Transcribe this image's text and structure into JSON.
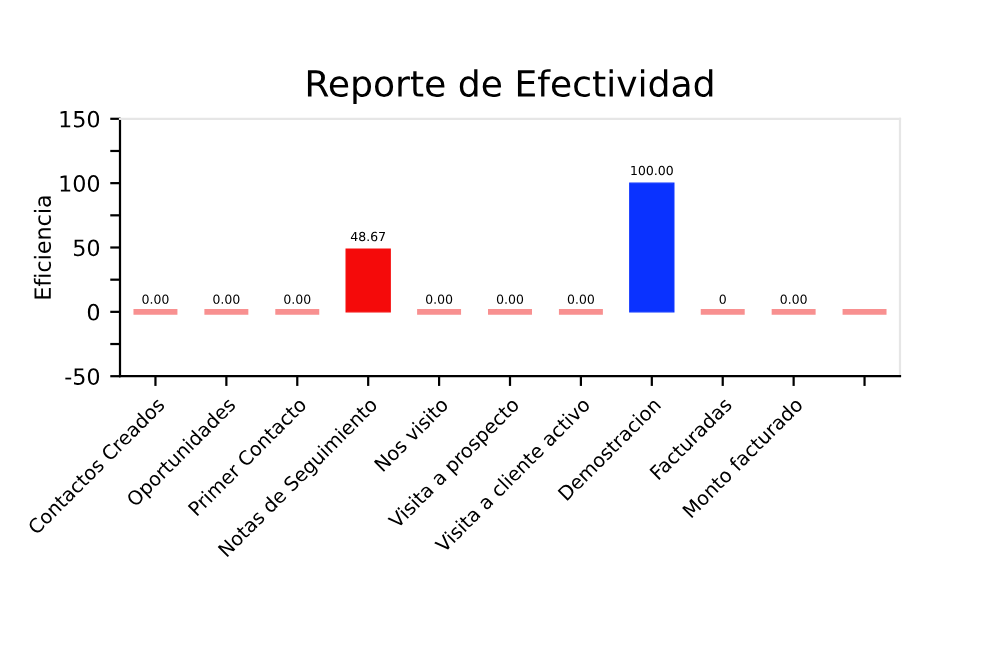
{
  "chart_data": {
    "type": "bar",
    "title": "Reporte de Efectividad",
    "ylabel": "Eficiencia",
    "categories": [
      "Contactos Creados",
      "Oportunidades",
      "Primer Contacto",
      "Notas de Seguimiento",
      "Nos visito",
      "Visita a prospecto",
      "Visita a cliente activo",
      "Demostracion",
      "Facturadas",
      "Monto facturado",
      null
    ],
    "values": [
      0,
      0,
      0,
      48.67,
      0,
      0,
      0,
      100,
      0,
      0,
      0
    ],
    "colors": [
      "#f89090",
      "#f89090",
      "#f89090",
      "#f50a0a",
      "#f89090",
      "#f89090",
      "#f89090",
      "#0a32ff",
      "#f89090",
      "#f89090",
      "#f89090"
    ],
    "value_labels": [
      "0.00",
      "0.00",
      "0.00",
      "48.67",
      "0.00",
      "0.00",
      "0.00",
      "100.00",
      "0",
      "0.00",
      null
    ],
    "ylim": [
      -50,
      150
    ],
    "yticks": [
      -50,
      {
        "value": -25,
        "label": null
      },
      0,
      {
        "value": 25,
        "label": null
      },
      50,
      {
        "value": 75,
        "label": null
      },
      100,
      {
        "value": 125,
        "label": null
      },
      150
    ]
  }
}
